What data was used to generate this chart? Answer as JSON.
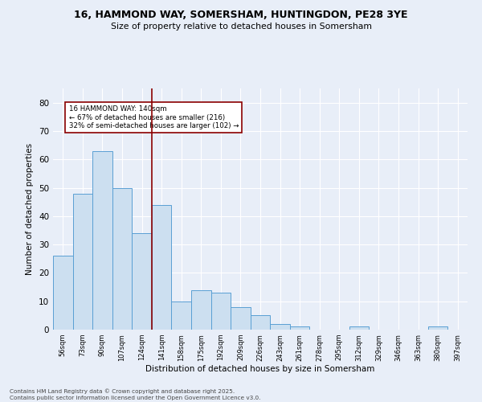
{
  "title_line1": "16, HAMMOND WAY, SOMERSHAM, HUNTINGDON, PE28 3YE",
  "title_line2": "Size of property relative to detached houses in Somersham",
  "xlabel": "Distribution of detached houses by size in Somersham",
  "ylabel": "Number of detached properties",
  "footnote": "Contains HM Land Registry data © Crown copyright and database right 2025.\nContains public sector information licensed under the Open Government Licence v3.0.",
  "bar_labels": [
    "56sqm",
    "73sqm",
    "90sqm",
    "107sqm",
    "124sqm",
    "141sqm",
    "158sqm",
    "175sqm",
    "192sqm",
    "209sqm",
    "226sqm",
    "243sqm",
    "261sqm",
    "278sqm",
    "295sqm",
    "312sqm",
    "329sqm",
    "346sqm",
    "363sqm",
    "380sqm",
    "397sqm"
  ],
  "bar_values": [
    26,
    48,
    63,
    50,
    34,
    44,
    10,
    14,
    13,
    8,
    5,
    2,
    1,
    0,
    0,
    1,
    0,
    0,
    0,
    1,
    0
  ],
  "bar_color": "#ccdff0",
  "bar_edgecolor": "#5a9fd4",
  "vline_x_idx": 5,
  "vline_color": "#8b0000",
  "annotation_text": "16 HAMMOND WAY: 140sqm\n← 67% of detached houses are smaller (216)\n32% of semi-detached houses are larger (102) →",
  "annotation_box_edgecolor": "#8b0000",
  "annotation_box_facecolor": "#ffffff",
  "bg_color": "#e8eef8",
  "plot_bg_color": "#e8eef8",
  "grid_color": "#ffffff",
  "ylim": [
    0,
    85
  ],
  "yticks": [
    0,
    10,
    20,
    30,
    40,
    50,
    60,
    70,
    80
  ]
}
